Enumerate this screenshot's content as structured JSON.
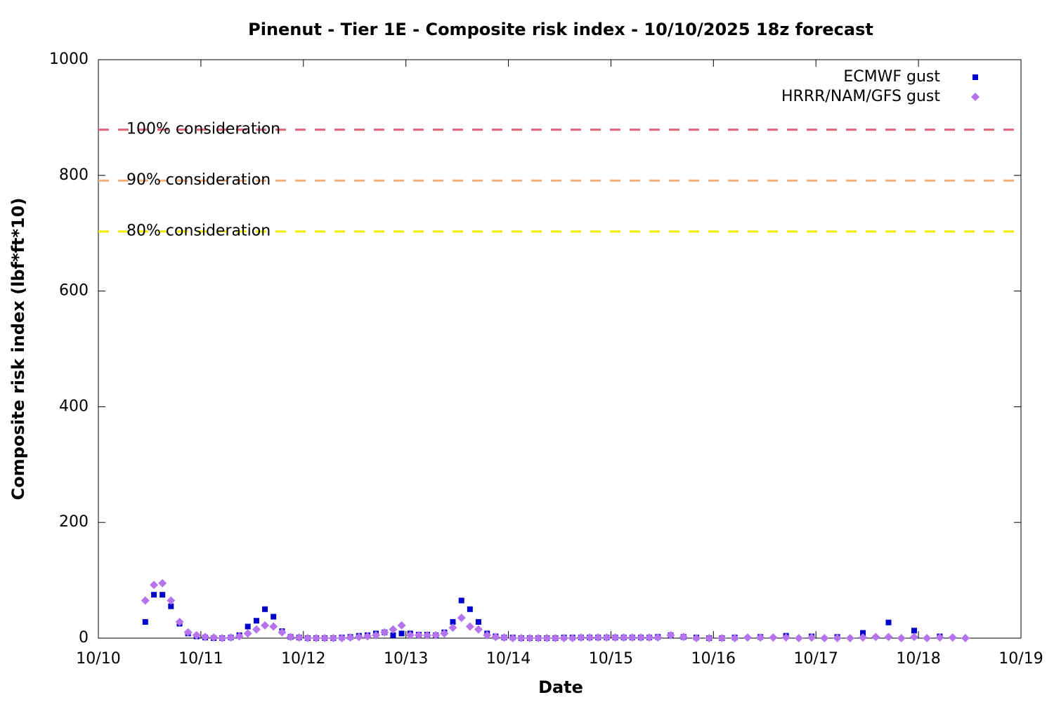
{
  "chart_data": {
    "type": "scatter",
    "title": "Pinenut - Tier 1E - Composite risk index - 10/10/2025 18z forecast",
    "x_label": "Date",
    "y_label": "Composite risk index (lbf*ft*10)",
    "xlim": [
      0,
      9
    ],
    "xticks": [
      {
        "value": 0,
        "label": "10/10"
      },
      {
        "value": 1,
        "label": "10/11"
      },
      {
        "value": 2,
        "label": "10/12"
      },
      {
        "value": 3,
        "label": "10/13"
      },
      {
        "value": 4,
        "label": "10/14"
      },
      {
        "value": 5,
        "label": "10/15"
      },
      {
        "value": 6,
        "label": "10/16"
      },
      {
        "value": 7,
        "label": "10/17"
      },
      {
        "value": 8,
        "label": "10/18"
      },
      {
        "value": 9,
        "label": "10/19"
      }
    ],
    "ylim": [
      0,
      1000
    ],
    "yticks": [
      0,
      200,
      400,
      600,
      800,
      1000
    ],
    "legend_position": "top right",
    "thresholds": [
      {
        "label": "100% consideration",
        "value": 879,
        "color": "#e0607e"
      },
      {
        "label": "90% consideration",
        "value": 791,
        "color": "#f4b07a"
      },
      {
        "label": "80% consideration",
        "value": 703,
        "color": "#f0f000"
      }
    ],
    "series": [
      {
        "name": "ECMWF gust",
        "color": "#0000cd",
        "marker": "square",
        "x": [
          0.458,
          0.542,
          0.625,
          0.708,
          0.792,
          0.875,
          0.958,
          1.042,
          1.125,
          1.208,
          1.292,
          1.375,
          1.458,
          1.542,
          1.625,
          1.708,
          1.792,
          1.875,
          1.958,
          2.042,
          2.125,
          2.208,
          2.292,
          2.375,
          2.458,
          2.542,
          2.625,
          2.708,
          2.792,
          2.875,
          2.958,
          3.042,
          3.125,
          3.208,
          3.292,
          3.375,
          3.458,
          3.542,
          3.625,
          3.708,
          3.792,
          3.875,
          3.958,
          4.042,
          4.125,
          4.208,
          4.292,
          4.375,
          4.458,
          4.542,
          4.625,
          4.708,
          4.792,
          4.875,
          4.958,
          5.042,
          5.125,
          5.208,
          5.292,
          5.375,
          5.458,
          5.583,
          5.708,
          5.833,
          5.958,
          6.083,
          6.208,
          6.458,
          6.708,
          6.958,
          7.208,
          7.458,
          7.708,
          7.958,
          8.208
        ],
        "values": [
          28,
          75,
          75,
          55,
          25,
          8,
          3,
          1,
          0,
          0,
          1,
          5,
          20,
          30,
          50,
          37,
          12,
          2,
          1,
          0,
          0,
          0,
          0,
          1,
          2,
          4,
          5,
          8,
          10,
          5,
          8,
          8,
          6,
          6,
          5,
          10,
          28,
          65,
          50,
          28,
          8,
          3,
          1,
          1,
          0,
          0,
          0,
          0,
          0,
          1,
          1,
          1,
          1,
          1,
          1,
          1,
          1,
          1,
          1,
          1,
          2,
          5,
          2,
          1,
          0,
          0,
          1,
          2,
          4,
          3,
          2,
          9,
          27,
          13,
          3
        ]
      },
      {
        "name": "HRRR/NAM/GFS gust",
        "color": "#b574ee",
        "marker": "diamond",
        "x": [
          0.458,
          0.542,
          0.625,
          0.708,
          0.792,
          0.875,
          0.958,
          1.042,
          1.125,
          1.208,
          1.292,
          1.375,
          1.458,
          1.542,
          1.625,
          1.708,
          1.792,
          1.875,
          1.958,
          2.042,
          2.125,
          2.208,
          2.292,
          2.375,
          2.458,
          2.542,
          2.625,
          2.708,
          2.792,
          2.875,
          2.958,
          3.042,
          3.125,
          3.208,
          3.292,
          3.375,
          3.458,
          3.542,
          3.625,
          3.708,
          3.792,
          3.875,
          3.958,
          4.042,
          4.125,
          4.208,
          4.292,
          4.375,
          4.458,
          4.542,
          4.625,
          4.708,
          4.792,
          4.875,
          4.958,
          5.042,
          5.125,
          5.208,
          5.292,
          5.375,
          5.458,
          5.583,
          5.708,
          5.833,
          5.958,
          6.083,
          6.208,
          6.333,
          6.458,
          6.583,
          6.708,
          6.833,
          6.958,
          7.083,
          7.208,
          7.333,
          7.458,
          7.583,
          7.708,
          7.833,
          7.958,
          8.083,
          8.208,
          8.333,
          8.458
        ],
        "values": [
          65,
          92,
          95,
          65,
          28,
          10,
          5,
          2,
          1,
          0,
          1,
          3,
          8,
          15,
          22,
          20,
          10,
          2,
          1,
          0,
          0,
          0,
          0,
          0,
          1,
          2,
          3,
          5,
          10,
          15,
          22,
          5,
          5,
          5,
          5,
          8,
          18,
          35,
          20,
          15,
          5,
          2,
          1,
          0,
          0,
          0,
          0,
          0,
          0,
          0,
          0,
          1,
          1,
          1,
          1,
          1,
          1,
          1,
          1,
          1,
          1,
          5,
          2,
          0,
          0,
          0,
          0,
          1,
          1,
          1,
          1,
          0,
          1,
          0,
          0,
          0,
          1,
          2,
          2,
          0,
          2,
          0,
          1,
          1,
          0
        ]
      }
    ]
  }
}
